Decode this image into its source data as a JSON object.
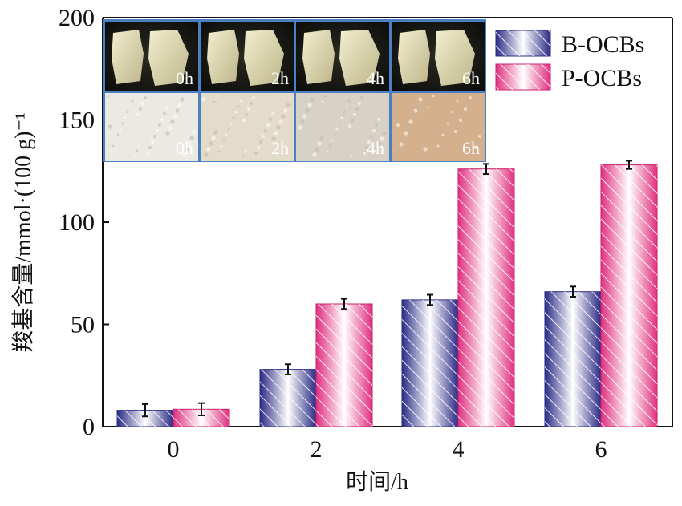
{
  "chart_data": {
    "type": "bar",
    "title": "",
    "xlabel": "时间/h",
    "ylabel": "羧基含量/mmol·(100 g)⁻¹",
    "categories": [
      "0",
      "2",
      "4",
      "6"
    ],
    "ylim": [
      0,
      200
    ],
    "yticks": [
      "0",
      "50",
      "100",
      "150",
      "200"
    ],
    "grid": false,
    "legend_position": "top-right",
    "series": [
      {
        "name": "B-OCBs",
        "values": [
          8,
          28,
          62,
          66
        ],
        "errors": [
          3,
          2.5,
          2.5,
          2.5
        ],
        "color": "#3b3b96"
      },
      {
        "name": "P-OCBs",
        "values": [
          8.5,
          60,
          126,
          128
        ],
        "errors": [
          3,
          2.5,
          2.5,
          2
        ],
        "color": "#e0307f"
      }
    ]
  },
  "inset": {
    "top_row_labels": [
      "0h",
      "2h",
      "4h",
      "6h"
    ],
    "bottom_row_labels": [
      "0h",
      "2h",
      "4h",
      "6h"
    ],
    "border_color": "#4a7fc4"
  }
}
